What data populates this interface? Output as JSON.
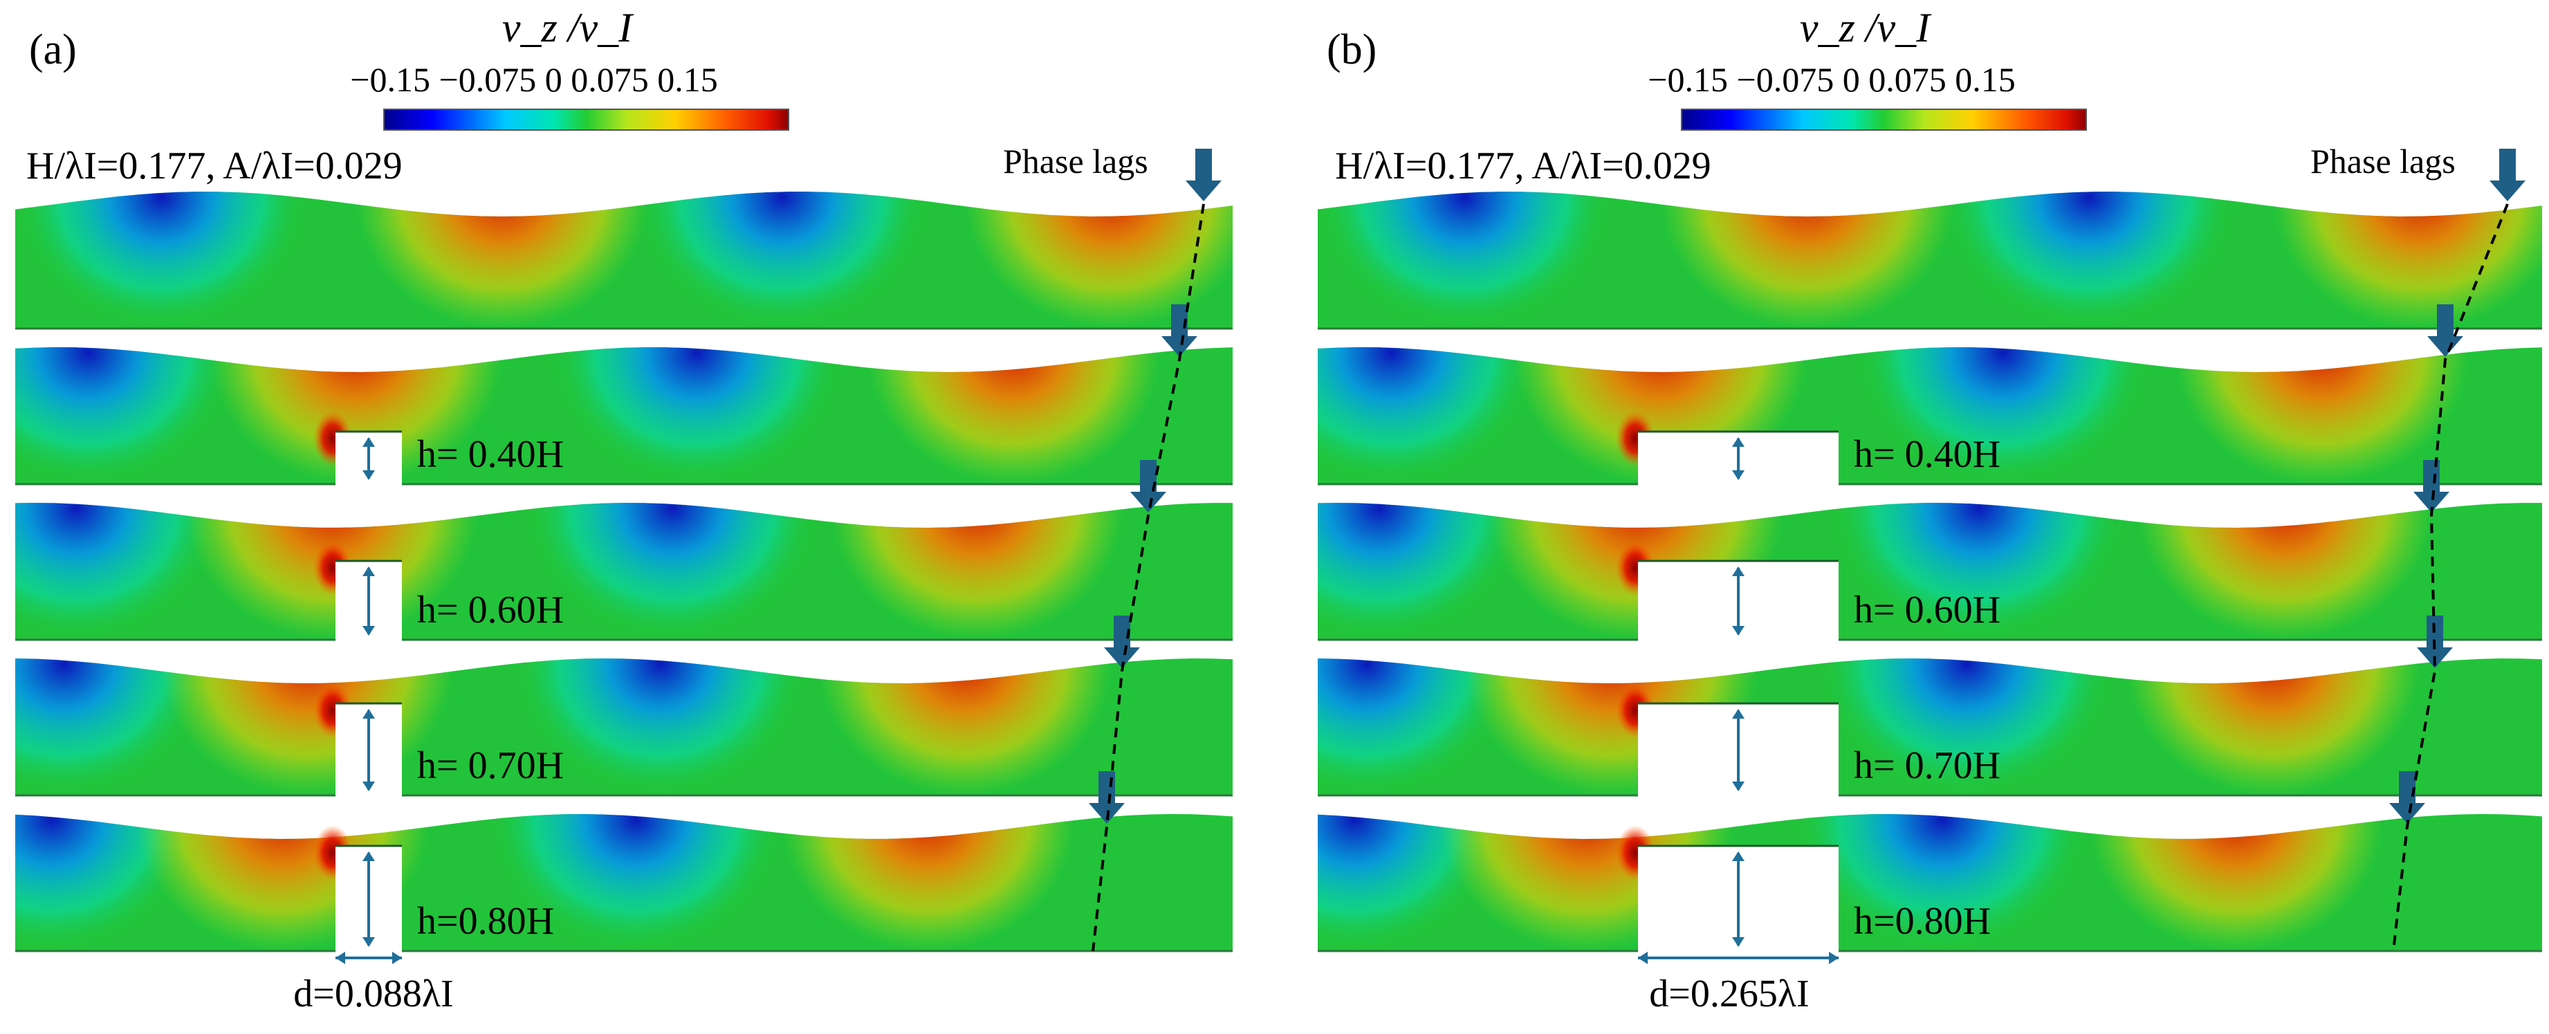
{
  "panels": [
    {
      "tag": "(a)",
      "colorbar": {
        "title": "v_z /v_I",
        "ticks": "−0.15 −0.075 0 0.075 0.15"
      },
      "params": "H/λI=0.177, A/λI=0.029",
      "lags_label": "Phase lags",
      "rows": [
        "h= 0.40H",
        "h= 0.60H",
        "h= 0.70H",
        "h=0.80H"
      ],
      "gap_label": "d=0.088λI",
      "gap_fraction": 0.088
    },
    {
      "tag": "(b)",
      "colorbar": {
        "title": "v_z /v_I",
        "ticks": "−0.15 −0.075 0 0.075 0.15"
      },
      "params": "H/λI=0.177, A/λI=0.029",
      "lags_label": "Phase lags",
      "rows": [
        "h= 0.40H",
        "h= 0.60H",
        "h= 0.70H",
        "h=0.80H"
      ],
      "gap_label": "d=0.265λI",
      "gap_fraction": 0.265
    }
  ],
  "colors": {
    "ramp": [
      "#00008b",
      "#0000ff",
      "#00bfff",
      "#00ffcc",
      "#22cc33",
      "#b6e61c",
      "#ffd000",
      "#ff6000",
      "#e01000",
      "#8b0000"
    ],
    "neutral": "#22c33a",
    "arrow": "#1f5f86",
    "phase_line": "#000000"
  }
}
